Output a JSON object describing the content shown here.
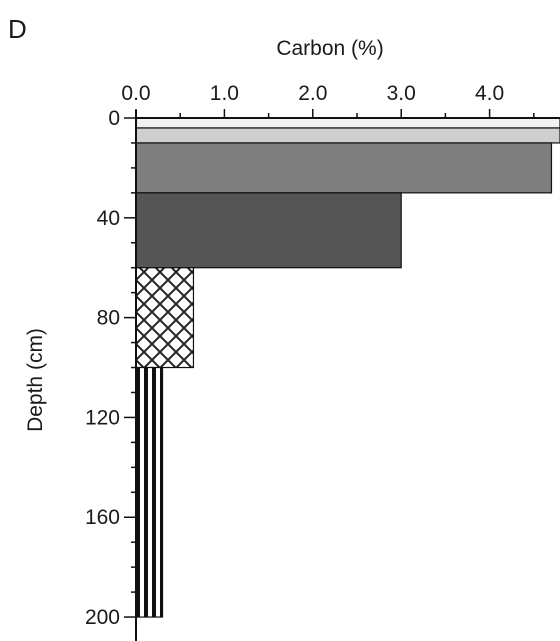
{
  "panel_label": "D",
  "chart_data": {
    "type": "bar",
    "orientation": "horizontal",
    "title": "",
    "xlabel": "Carbon (%)",
    "ylabel": "Depth (cm)",
    "xlim": [
      0,
      5.0
    ],
    "ylim": [
      0,
      210
    ],
    "y_inverted": true,
    "x_axis_position": "top",
    "x_ticks": [
      0,
      1,
      2,
      3,
      4
    ],
    "x_tick_labels": [
      "0.0",
      "1.0",
      "2.0",
      "3.0",
      "4.0"
    ],
    "y_ticks": [
      0,
      40,
      80,
      120,
      160,
      200
    ],
    "y_tick_labels": [
      "0",
      "40",
      "80",
      "120",
      "160",
      "200"
    ],
    "grid": false,
    "bars": [
      {
        "depth_top": 0,
        "depth_bottom": 4,
        "value": 5.0,
        "fill": "#f2f2f2",
        "pattern": "solid"
      },
      {
        "depth_top": 4,
        "depth_bottom": 10,
        "value": 5.0,
        "fill": "#cfcfcf",
        "pattern": "solid"
      },
      {
        "depth_top": 10,
        "depth_bottom": 30,
        "value": 4.7,
        "fill": "#7f7f7f",
        "pattern": "solid"
      },
      {
        "depth_top": 30,
        "depth_bottom": 60,
        "value": 3.0,
        "fill": "#555555",
        "pattern": "solid"
      },
      {
        "depth_top": 60,
        "depth_bottom": 100,
        "value": 0.65,
        "fill": "#ffffff",
        "pattern": "crosshatch"
      },
      {
        "depth_top": 100,
        "depth_bottom": 200,
        "value": 0.3,
        "fill": "#ffffff",
        "pattern": "vertical-stripes"
      }
    ]
  }
}
